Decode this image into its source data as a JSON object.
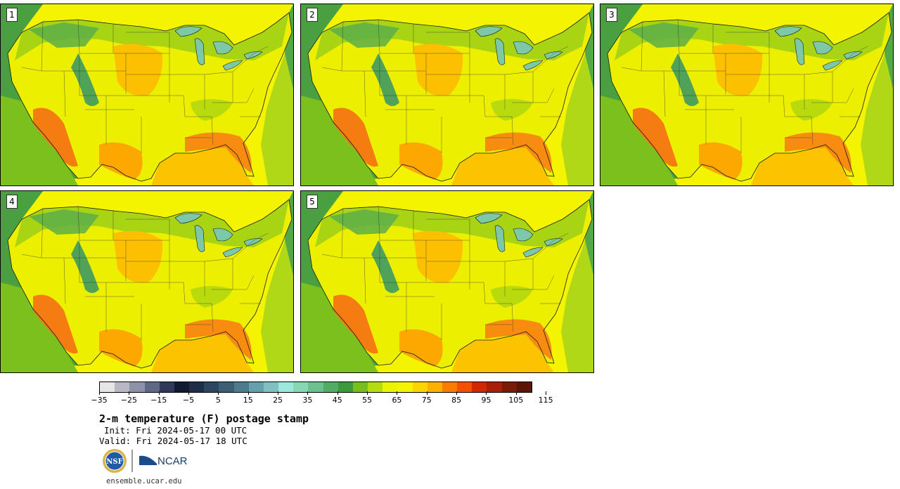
{
  "panels": [
    {
      "label": "1"
    },
    {
      "label": "2"
    },
    {
      "label": "3"
    },
    {
      "label": "4"
    },
    {
      "label": "5"
    }
  ],
  "colorbar": {
    "colors": [
      "#e6e6e6",
      "#b8b8c4",
      "#8c93a8",
      "#5f6884",
      "#2f3a5a",
      "#111a30",
      "#1d2e48",
      "#2c4660",
      "#3c5f74",
      "#4f7c8c",
      "#66a0aa",
      "#7fc0c2",
      "#9de8dc",
      "#86d8b4",
      "#6cc28e",
      "#4fae64",
      "#3c9a3c",
      "#78be1c",
      "#b4dc10",
      "#e8f400",
      "#f4f400",
      "#fcd400",
      "#fcb000",
      "#fc7c00",
      "#f45000",
      "#d02800",
      "#a81e08",
      "#7c1a08",
      "#5c1406"
    ],
    "tick_labels": [
      "−35",
      "−25",
      "−15",
      "−5",
      "5",
      "15",
      "25",
      "35",
      "45",
      "55",
      "65",
      "75",
      "85",
      "95",
      "105",
      "115"
    ]
  },
  "title": "2-m temperature (F) postage stamp",
  "init": "Init: Fri 2024-05-17 00 UTC",
  "valid": "Valid: Fri 2024-05-17 18 UTC",
  "logos": {
    "nsf": "NSF",
    "ncar": "NCAR"
  },
  "url": "ensemble.ucar.edu"
}
